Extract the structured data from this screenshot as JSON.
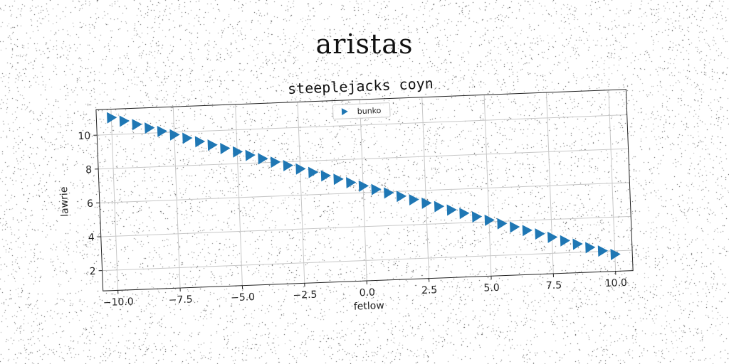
{
  "figure": {
    "suptitle": "aristas"
  },
  "colors": {
    "series": "#1f77b4",
    "grid": "#c8c8c8",
    "axes": "#222222"
  },
  "chart_data": {
    "type": "scatter",
    "title": "steeplejacks coyn",
    "xlabel": "fetlow",
    "ylabel": "lawrie",
    "marker": "triangle-right",
    "legend_position": "top-center",
    "grid": true,
    "xlim": [
      -10.6,
      10.7
    ],
    "ylim": [
      0.8,
      11.5
    ],
    "xticks": [
      -10.0,
      -7.5,
      -5.0,
      -2.5,
      0.0,
      2.5,
      5.0,
      7.5,
      10.0
    ],
    "xtick_labels": [
      "−10.0",
      "−7.5",
      "−5.0",
      "−2.5",
      "0.0",
      "2.5",
      "5.0",
      "7.5",
      "10.0"
    ],
    "yticks": [
      2,
      4,
      6,
      8,
      10
    ],
    "ytick_labels": [
      "2",
      "4",
      "6",
      "8",
      "10"
    ],
    "series": [
      {
        "name": "bunko",
        "x": [
          -10.0,
          -9.5,
          -9.0,
          -8.5,
          -8.0,
          -7.5,
          -7.0,
          -6.5,
          -6.0,
          -5.5,
          -5.0,
          -4.5,
          -4.0,
          -3.5,
          -3.0,
          -2.5,
          -2.0,
          -1.5,
          -1.0,
          -0.5,
          0.0,
          0.5,
          1.0,
          1.5,
          2.0,
          2.5,
          3.0,
          3.5,
          4.0,
          4.5,
          5.0,
          5.5,
          6.0,
          6.5,
          7.0,
          7.5,
          8.0,
          8.5,
          9.0,
          9.5,
          10.0
        ],
        "y": [
          11.0,
          10.77,
          10.54,
          10.31,
          10.08,
          9.85,
          9.62,
          9.39,
          9.16,
          8.93,
          8.7,
          8.47,
          8.24,
          8.01,
          7.78,
          7.55,
          7.32,
          7.09,
          6.86,
          6.63,
          6.4,
          6.17,
          5.94,
          5.71,
          5.48,
          5.25,
          5.02,
          4.79,
          4.56,
          4.33,
          4.1,
          3.87,
          3.64,
          3.41,
          3.18,
          2.95,
          2.72,
          2.49,
          2.26,
          2.03,
          1.8
        ]
      }
    ]
  }
}
